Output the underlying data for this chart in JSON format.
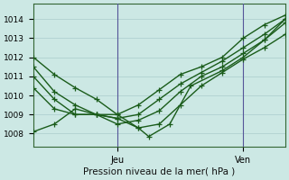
{
  "title": "Pression niveau de la mer( hPa )",
  "ylabel_ticks": [
    1008,
    1009,
    1010,
    1011,
    1012,
    1013,
    1014
  ],
  "ylim": [
    1007.3,
    1014.8
  ],
  "xlim": [
    0,
    48
  ],
  "background_color": "#cce8e4",
  "grid_color": "#aacccc",
  "line_color": "#1a5c1a",
  "vline_color": "#555599",
  "vlines_x": [
    16,
    40
  ],
  "vline_labels": [
    "Jeu",
    "Ven"
  ],
  "series": [
    {
      "x": [
        0,
        4,
        8,
        12,
        16,
        20,
        24,
        28,
        32,
        36,
        40,
        44,
        48
      ],
      "y": [
        1012.0,
        1011.1,
        1010.4,
        1009.8,
        1009.0,
        1009.5,
        1010.3,
        1011.1,
        1011.5,
        1012.0,
        1013.0,
        1013.7,
        1014.2
      ]
    },
    {
      "x": [
        0,
        4,
        8,
        12,
        16,
        20,
        24,
        28,
        32,
        36,
        40,
        44,
        48
      ],
      "y": [
        1011.5,
        1010.2,
        1009.5,
        1009.0,
        1008.8,
        1009.0,
        1009.8,
        1010.6,
        1011.2,
        1011.8,
        1012.5,
        1013.2,
        1014.0
      ]
    },
    {
      "x": [
        0,
        4,
        8,
        12,
        16,
        20,
        24,
        28,
        32,
        36,
        40,
        44,
        48
      ],
      "y": [
        1011.0,
        1009.8,
        1009.0,
        1009.0,
        1008.5,
        1008.7,
        1009.2,
        1010.2,
        1011.0,
        1011.5,
        1012.2,
        1012.9,
        1013.8
      ]
    },
    {
      "x": [
        0,
        4,
        8,
        12,
        16,
        20,
        22,
        26,
        30,
        36,
        40,
        44,
        48
      ],
      "y": [
        1010.4,
        1009.3,
        1009.0,
        1009.0,
        1009.0,
        1008.3,
        1007.85,
        1008.5,
        1010.5,
        1011.3,
        1012.0,
        1012.9,
        1014.0
      ]
    },
    {
      "x": [
        0,
        4,
        8,
        12,
        16,
        20,
        24,
        28,
        32,
        36,
        40,
        44,
        48
      ],
      "y": [
        1008.1,
        1008.5,
        1009.3,
        1009.0,
        1008.8,
        1008.3,
        1008.5,
        1009.5,
        1010.5,
        1011.2,
        1011.9,
        1012.5,
        1013.2
      ]
    }
  ],
  "marker": "+",
  "markersize": 5,
  "linewidth": 1.0
}
